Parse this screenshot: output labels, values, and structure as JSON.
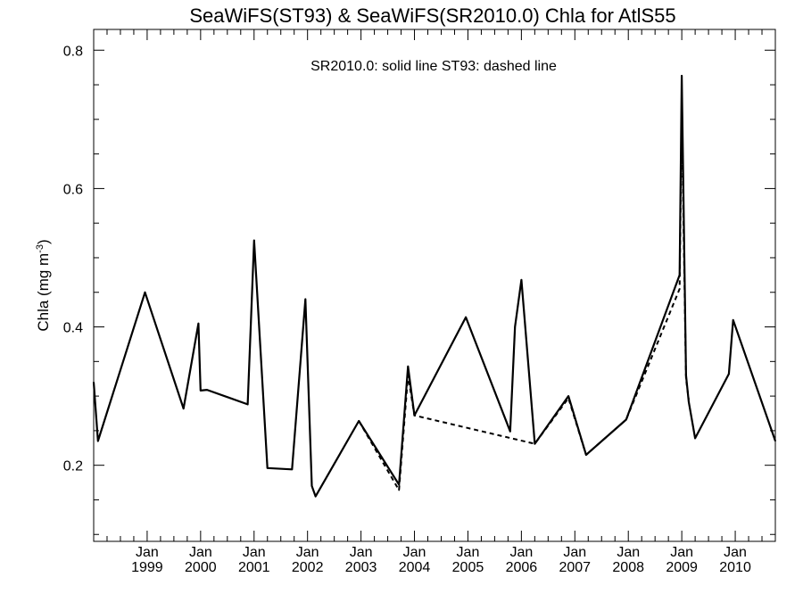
{
  "chart_data": {
    "type": "line",
    "title": "SeaWiFS(ST93) & SeaWiFS(SR2010.0)  Chla for AtlS55",
    "annotation": "SR2010.0: solid line   ST93: dashed line",
    "ylabel": "Chla (mg m",
    "ylabel_sup": "-3",
    "ylabel_close": ")",
    "xlabel": "",
    "xlim": [
      1998.0,
      2010.75
    ],
    "ylim": [
      0.09,
      0.83
    ],
    "y_major_ticks": [
      0.2,
      0.4,
      0.6,
      0.8
    ],
    "y_tick_labels": [
      "0.2",
      "0.4",
      "0.6",
      "0.8"
    ],
    "y_minor_ticks": [
      0.1,
      0.15,
      0.25,
      0.3,
      0.35,
      0.45,
      0.5,
      0.55,
      0.65,
      0.7,
      0.75
    ],
    "x_ticks": [
      {
        "x": 1999.0,
        "month": "Jan",
        "year": "1999"
      },
      {
        "x": 2000.0,
        "month": "Jan",
        "year": "2000"
      },
      {
        "x": 2001.0,
        "month": "Jan",
        "year": "2001"
      },
      {
        "x": 2002.0,
        "month": "Jan",
        "year": "2002"
      },
      {
        "x": 2003.0,
        "month": "Jan",
        "year": "2003"
      },
      {
        "x": 2004.0,
        "month": "Jan",
        "year": "2004"
      },
      {
        "x": 2005.0,
        "month": "Jan",
        "year": "2005"
      },
      {
        "x": 2006.0,
        "month": "Jan",
        "year": "2006"
      },
      {
        "x": 2007.0,
        "month": "Jan",
        "year": "2007"
      },
      {
        "x": 2008.0,
        "month": "Jan",
        "year": "2008"
      },
      {
        "x": 2009.0,
        "month": "Jan",
        "year": "2009"
      },
      {
        "x": 2010.0,
        "month": "Jan",
        "year": "2010"
      }
    ],
    "grid": false,
    "series": [
      {
        "name": "SR2010.0",
        "style": "solid",
        "color": "#000000",
        "points": [
          [
            1998.0,
            0.32
          ],
          [
            1998.08,
            0.235
          ],
          [
            1998.96,
            0.45
          ],
          [
            1999.68,
            0.282
          ],
          [
            1999.96,
            0.405
          ],
          [
            2000.0,
            0.308
          ],
          [
            2000.12,
            0.309
          ],
          [
            2000.88,
            0.288
          ],
          [
            2001.0,
            0.525
          ],
          [
            2001.25,
            0.196
          ],
          [
            2001.71,
            0.194
          ],
          [
            2001.96,
            0.44
          ],
          [
            2002.08,
            0.17
          ],
          [
            2002.15,
            0.155
          ],
          [
            2002.96,
            0.264
          ],
          [
            2003.71,
            0.172
          ],
          [
            2003.88,
            0.343
          ],
          [
            2004.0,
            0.272
          ],
          [
            2004.96,
            0.414
          ],
          [
            2005.79,
            0.249
          ],
          [
            2005.88,
            0.4
          ],
          [
            2006.0,
            0.468
          ],
          [
            2006.25,
            0.231
          ],
          [
            2006.88,
            0.3
          ],
          [
            2007.21,
            0.215
          ],
          [
            2007.96,
            0.266
          ],
          [
            2008.96,
            0.475
          ],
          [
            2009.0,
            0.763
          ],
          [
            2009.08,
            0.33
          ],
          [
            2009.13,
            0.292
          ],
          [
            2009.25,
            0.239
          ],
          [
            2009.88,
            0.332
          ],
          [
            2009.96,
            0.41
          ],
          [
            2010.75,
            0.235
          ]
        ]
      },
      {
        "name": "ST93",
        "style": "dashed",
        "color": "#000000",
        "points": [
          [
            2002.96,
            0.264
          ],
          [
            2003.71,
            0.164
          ],
          [
            2003.88,
            0.33
          ],
          [
            2004.0,
            0.272
          ],
          [
            2006.25,
            0.231
          ],
          [
            2006.88,
            0.297
          ],
          [
            2007.21,
            0.215
          ],
          [
            2007.96,
            0.266
          ],
          [
            2008.96,
            0.455
          ],
          [
            2009.0,
            0.71
          ],
          [
            2009.08,
            0.325
          ],
          [
            2009.13,
            0.295
          ]
        ]
      }
    ]
  }
}
